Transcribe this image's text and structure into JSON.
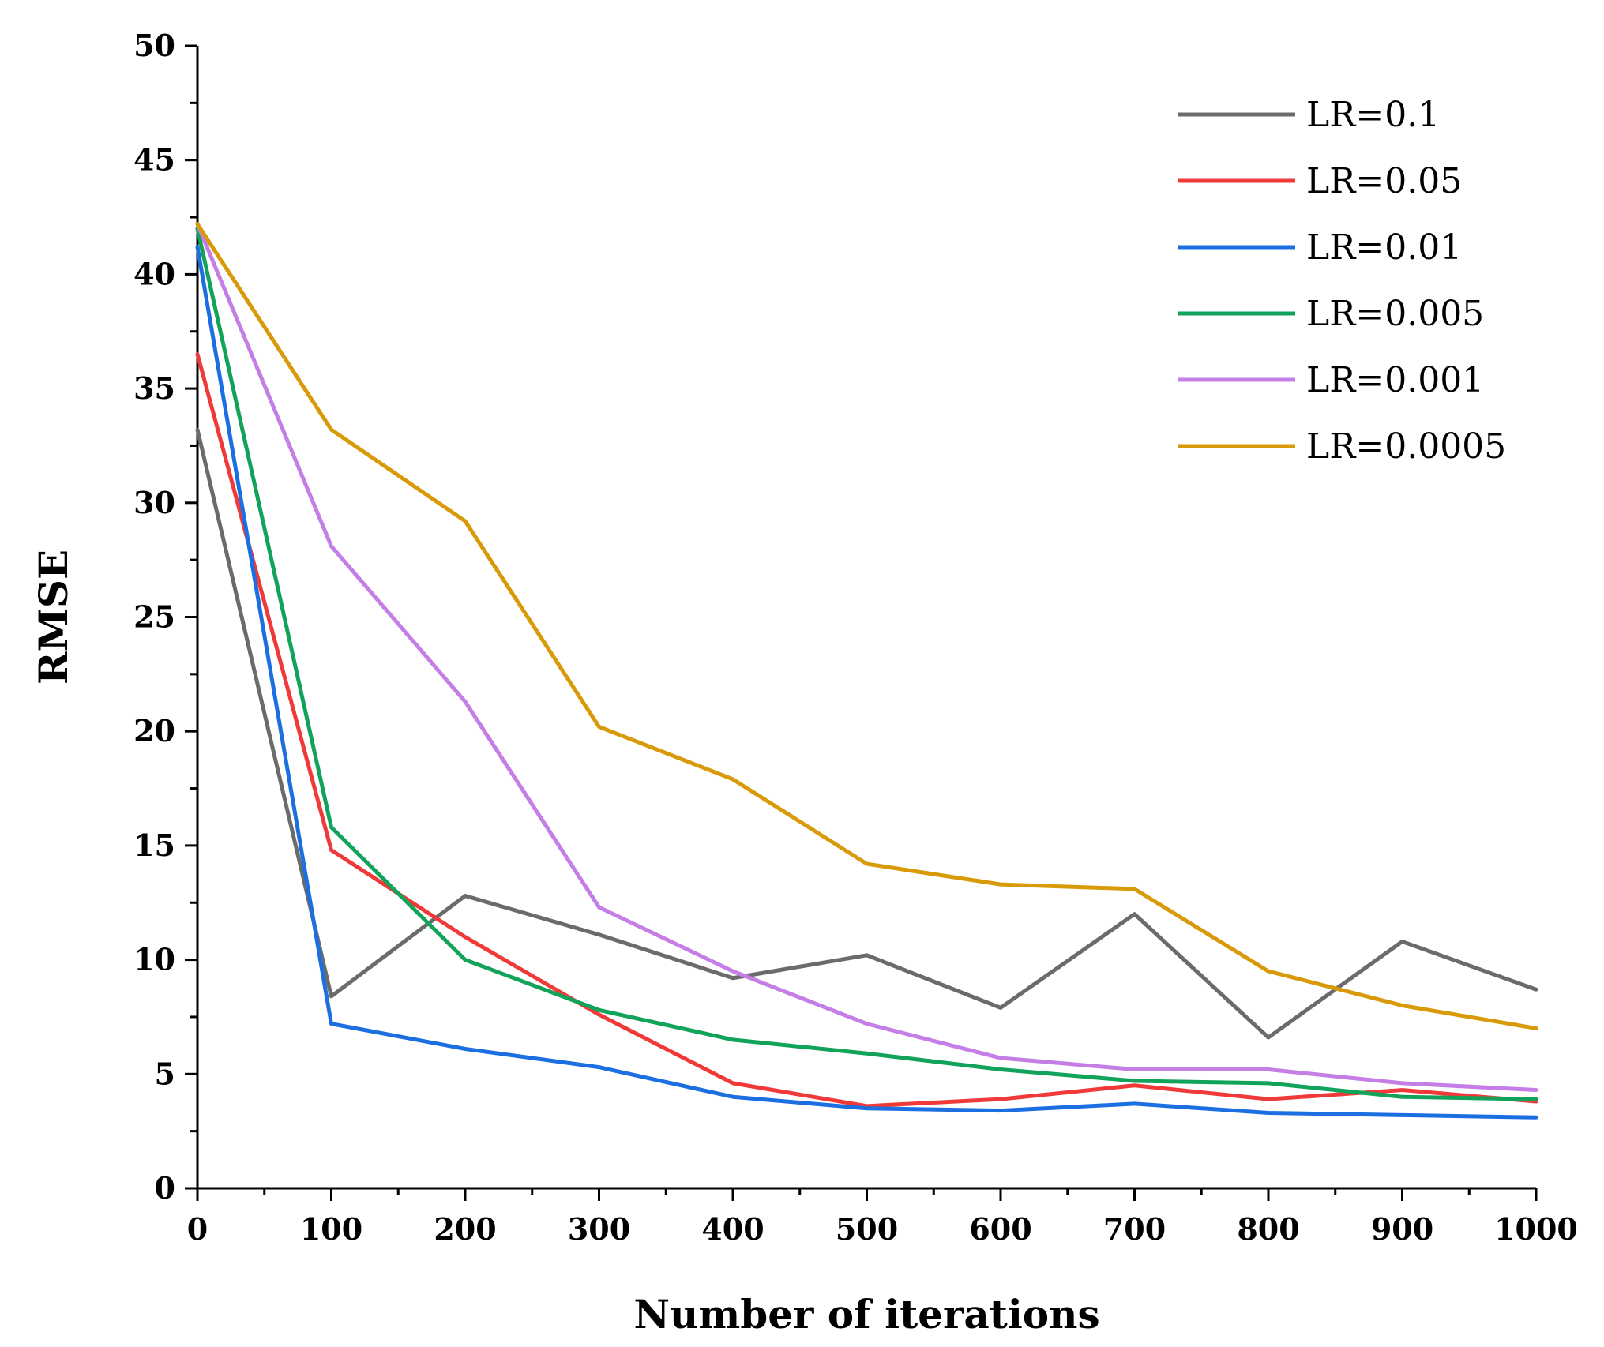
{
  "chart_data": {
    "type": "line",
    "title": "",
    "xlabel": "Number of iterations",
    "ylabel": "RMSE",
    "x": [
      0,
      100,
      200,
      300,
      400,
      500,
      600,
      700,
      800,
      900,
      1000
    ],
    "xlim": [
      0,
      1000
    ],
    "ylim": [
      0,
      50
    ],
    "xticks": [
      0,
      100,
      200,
      300,
      400,
      500,
      600,
      700,
      800,
      900,
      1000
    ],
    "yticks": [
      0,
      5,
      10,
      15,
      20,
      25,
      30,
      35,
      40,
      45,
      50
    ],
    "grid": false,
    "legend_position": "top-right",
    "series": [
      {
        "name": "LR=0.1",
        "color": "#6b6b6b",
        "values": [
          33.2,
          8.4,
          12.8,
          11.1,
          9.2,
          10.2,
          7.9,
          12.0,
          6.6,
          10.8,
          8.7
        ]
      },
      {
        "name": "LR=0.05",
        "color": "#f03a3a",
        "values": [
          36.5,
          14.8,
          11.0,
          7.6,
          4.6,
          3.6,
          3.9,
          4.5,
          3.9,
          4.3,
          3.8
        ]
      },
      {
        "name": "LR=0.01",
        "color": "#1b6fe0",
        "values": [
          41.2,
          7.2,
          6.1,
          5.3,
          4.0,
          3.5,
          3.4,
          3.7,
          3.3,
          3.2,
          3.1
        ]
      },
      {
        "name": "LR=0.005",
        "color": "#12a35a",
        "values": [
          42.0,
          15.8,
          10.0,
          7.8,
          6.5,
          5.9,
          5.2,
          4.7,
          4.6,
          4.0,
          3.9
        ]
      },
      {
        "name": "LR=0.001",
        "color": "#c47ee6",
        "values": [
          42.2,
          28.1,
          21.3,
          12.3,
          9.5,
          7.2,
          5.7,
          5.2,
          5.2,
          4.6,
          4.3
        ]
      },
      {
        "name": "LR=0.0005",
        "color": "#d99a0a",
        "values": [
          42.2,
          33.2,
          29.2,
          20.2,
          17.9,
          14.2,
          13.3,
          13.1,
          9.5,
          8.0,
          7.0
        ]
      }
    ]
  }
}
